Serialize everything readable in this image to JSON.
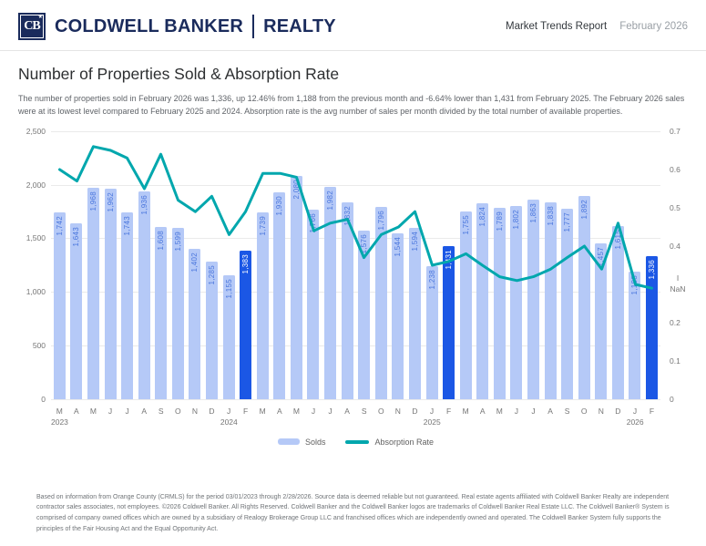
{
  "header": {
    "logo": {
      "monogram": "CB",
      "star": "★"
    },
    "brand": "COLDWELL BANKER",
    "brand_suffix": "REALTY",
    "report_title": "Market Trends Report",
    "report_period": "February 2026"
  },
  "page": {
    "title": "Number of Properties Sold & Absorption Rate",
    "description": "The number of properties sold in February 2026 was 1,336, up 12.46% from 1,188 from the previous month and -6.64% lower than 1,431 from February 2025. The February 2026 sales were at its lowest level compared to February 2025 and 2024. Absorption rate is the avg number of sales per month divided by the total number of available properties."
  },
  "chart_data": {
    "type": "bar+line",
    "title": "Number of Properties Sold & Absorption Rate",
    "categories": [
      "M",
      "A",
      "M",
      "J",
      "J",
      "A",
      "S",
      "O",
      "N",
      "D",
      "J",
      "F",
      "M",
      "A",
      "M",
      "J",
      "J",
      "A",
      "S",
      "O",
      "N",
      "D",
      "J",
      "F",
      "M",
      "A",
      "M",
      "J",
      "J",
      "A",
      "S",
      "O",
      "N",
      "D",
      "J",
      "F"
    ],
    "year_markers": {
      "0": "2023",
      "10": "2024",
      "22": "2025",
      "34": "2026"
    },
    "series": [
      {
        "name": "Solds",
        "type": "bar",
        "values": [
          1742,
          1643,
          1968,
          1962,
          1743,
          1936,
          1608,
          1599,
          1402,
          1285,
          1155,
          1383,
          1739,
          1930,
          2080,
          1766,
          1982,
          1832,
          1576,
          1796,
          1544,
          1594,
          1238,
          1431,
          1755,
          1824,
          1789,
          1802,
          1863,
          1838,
          1777,
          1892,
          1457,
          1615,
          1188,
          1336
        ]
      },
      {
        "name": "Absorption Rate",
        "type": "line",
        "values": [
          0.6,
          0.57,
          0.66,
          0.65,
          0.63,
          0.55,
          0.64,
          0.52,
          0.49,
          0.53,
          0.43,
          0.49,
          0.59,
          0.59,
          0.58,
          0.44,
          0.46,
          0.47,
          0.37,
          0.43,
          0.45,
          0.49,
          0.35,
          0.36,
          0.38,
          0.35,
          0.32,
          0.31,
          0.32,
          0.34,
          0.37,
          0.4,
          0.34,
          0.46,
          0.3,
          0.29
        ]
      }
    ],
    "highlight_indices": [
      11,
      23,
      35
    ],
    "left_axis": {
      "ticks": [
        "2,500",
        "2,000",
        "1,500",
        "1,000",
        "500",
        "0"
      ],
      "max": 2500
    },
    "right_axis": {
      "ticks": [
        "0.7",
        "0.6",
        "0.5",
        "0.4",
        "I\nNaN",
        "0.2",
        "0.1",
        "0"
      ],
      "max": 0.7
    },
    "grid": true,
    "legend_position": "bottom",
    "legend": [
      {
        "label": "Solds",
        "color": "#b5c9f7"
      },
      {
        "label": "Absorption Rate",
        "color": "#00a7ad"
      }
    ],
    "colors": {
      "bar": "#b5c9f7",
      "bar_highlight": "#1b57e5",
      "bar_label": "#4a76dd",
      "bar_label_highlight": "#ffffff",
      "line": "#00a7ad",
      "grid": "#eaeaea",
      "axis_text": "#757575"
    }
  },
  "footer": {
    "disclaimer": "Based on information from Orange County (CRMLS) for the period 03/01/2023 through 2/28/2026. Source data is deemed reliable but not guaranteed. Real estate agents affiliated with Coldwell Banker Realty are independent contractor sales associates, not employees. ©2026 Coldwell Banker. All Rights Reserved. Coldwell Banker and the Coldwell Banker logos are trademarks of Coldwell Banker Real Estate LLC. The Coldwell Banker® System is comprised of company owned offices which are owned by a subsidiary of Realogy Brokerage Group LLC and franchised offices which are independently owned and operated. The Coldwell Banker System fully supports the principles of the Fair Housing Act and the Equal Opportunity Act."
  }
}
